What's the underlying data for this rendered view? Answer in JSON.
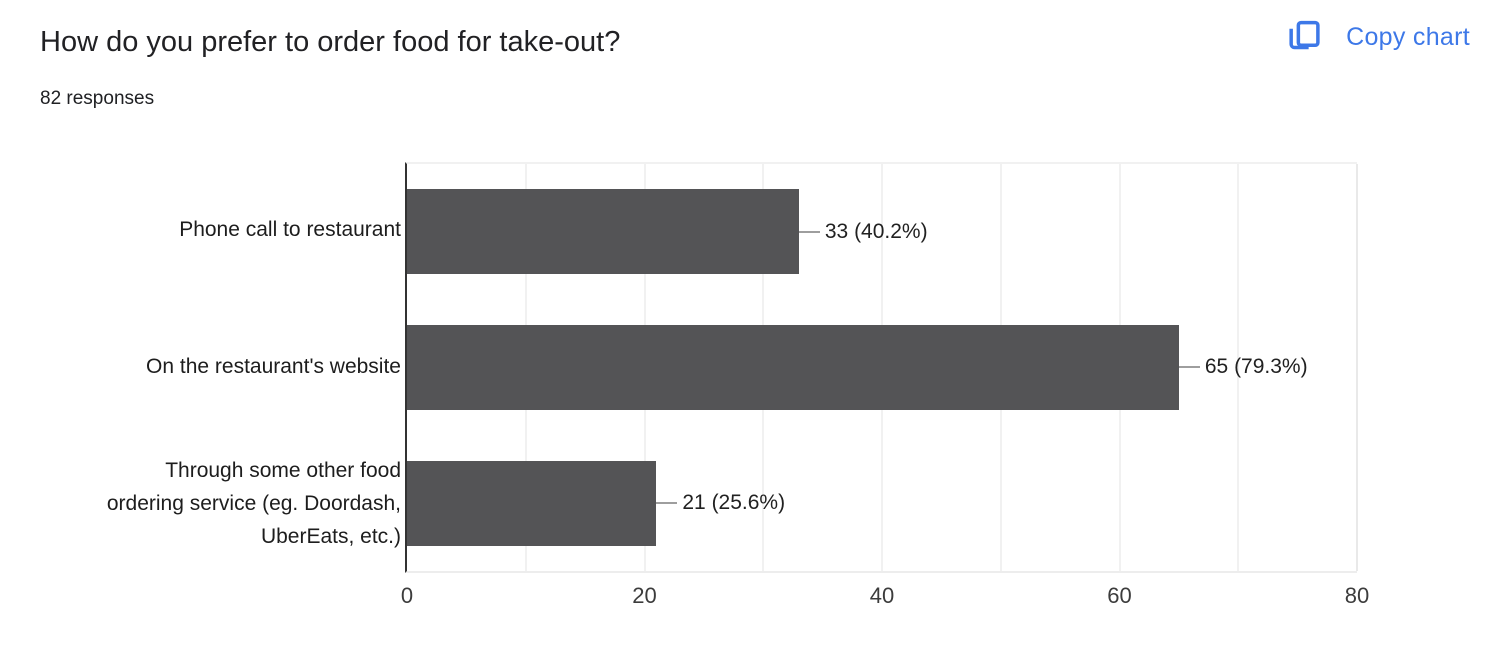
{
  "header": {
    "title": "How do you prefer to order food for take-out?",
    "responses_count": "82 responses",
    "copy_chart": {
      "label": "Copy chart",
      "icon": "copy-chart-icon",
      "accent_color": "#3d78e8"
    }
  },
  "chart_data": {
    "type": "bar",
    "orientation": "horizontal",
    "title": "How do you prefer to order food for take-out?",
    "total_responses": 82,
    "categories": [
      "Phone call to restaurant",
      "On the restaurant's website",
      "Through some other food ordering service (eg. Doordash, UberEats, etc.)"
    ],
    "values": [
      33,
      65,
      21
    ],
    "percentages": [
      40.2,
      79.3,
      25.6
    ],
    "value_labels": [
      "33 (40.2%)",
      "65 (79.3%)",
      "21 (25.6%)"
    ],
    "x_ticks": [
      0,
      20,
      40,
      60,
      80
    ],
    "xlim": [
      0,
      80
    ],
    "gridline_interval": 10,
    "grid": true,
    "legend": false,
    "bar_color": "#545456",
    "axis_color": "#333333",
    "gridline_color": "#f1f1f1",
    "connector_color": "#9e9e9e"
  }
}
